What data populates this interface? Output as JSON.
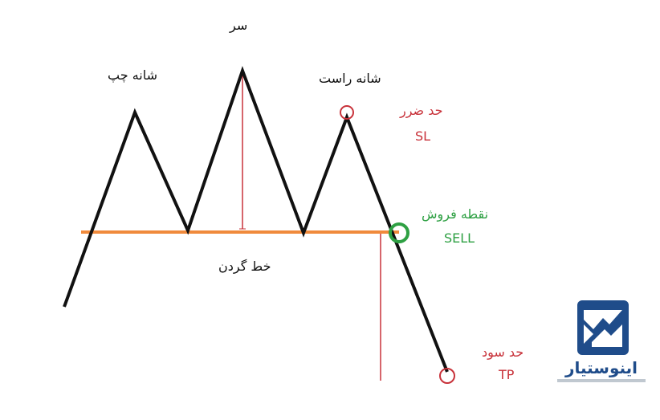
{
  "labels": {
    "head": "سر",
    "left_shoulder": "شانه چپ",
    "right_shoulder": "شانه راست",
    "neckline": "خط گردن",
    "stop_loss_fa": "حد ضرر",
    "stop_loss_en": "SL",
    "sell_point_fa": "نقطه فروش",
    "sell_point_en": "SELL",
    "take_profit_fa": "حد سود",
    "take_profit_en": "TP"
  },
  "logo": {
    "name": "اینوستیار",
    "icon": "brand-mark-icon"
  },
  "colors": {
    "price_line": "#111111",
    "neckline": "#f08a3c",
    "measure_lines": "#c8323a",
    "stop_loss": "#c8323a",
    "sell": "#2ea043",
    "take_profit": "#c8323a",
    "logo": "#1f4c8a"
  }
}
